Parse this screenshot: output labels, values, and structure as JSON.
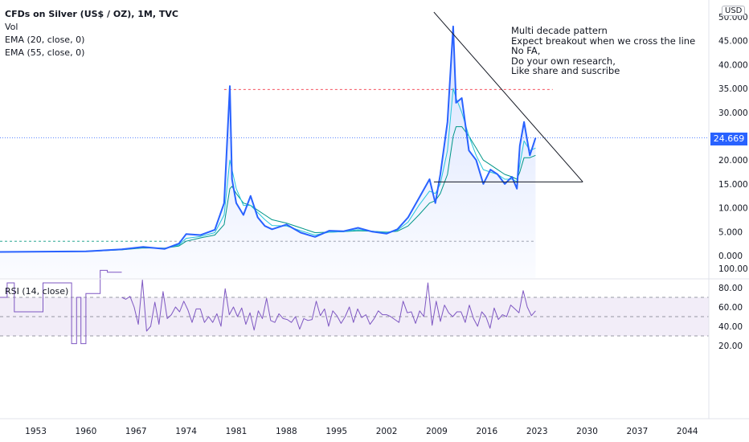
{
  "header": {
    "symbol": "CFDs on Silver (US$ / OZ), 1M, TVC",
    "indicators": [
      "Vol",
      "EMA (20, close, 0)",
      "EMA (55, close, 0)"
    ]
  },
  "currency_badge": "USD",
  "price_tag": "24.669",
  "annotation": [
    "Multi decade pattern",
    "Expect breakout when we cross the line",
    "No FA,",
    "Do your own research,",
    "Like share and suscribe"
  ],
  "rsi": {
    "title": "RSI (14, close)"
  },
  "colors": {
    "price": "#2962ff",
    "ema20": "#26c6da",
    "ema55": "#009688",
    "rsi": "#7e57c2",
    "band": "#ede7f6",
    "resistance": "#f23645",
    "support": "#089981"
  },
  "chart_data": [
    {
      "type": "line",
      "title": "CFDs on Silver (US$ / OZ), 1M, TVC",
      "x": [
        1948,
        1960,
        1965,
        1968,
        1971,
        1973,
        1974,
        1976,
        1978,
        1979.3,
        1980.1,
        1980.4,
        1981,
        1982,
        1983,
        1984,
        1985,
        1986,
        1988,
        1990,
        1992,
        1994,
        1996,
        1998,
        2000,
        2002,
        2003.5,
        2005,
        2006.5,
        2008,
        2008.8,
        2009.5,
        2010.5,
        2011.3,
        2011.7,
        2012.5,
        2013.5,
        2014.5,
        2015.5,
        2016.5,
        2017.5,
        2018.5,
        2019.5,
        2020.2,
        2020.6,
        2021.2,
        2022,
        2022.8
      ],
      "series": [
        {
          "name": "CFDs on Silver (US$ / OZ), 1M, TVC",
          "values": [
            0.75,
            0.9,
            1.3,
            1.8,
            1.4,
            2.5,
            4.5,
            4.3,
            5.4,
            11,
            35.5,
            16,
            11,
            8.5,
            12.5,
            8,
            6.2,
            5.5,
            6.5,
            4.8,
            3.9,
            5.2,
            5.1,
            5.8,
            5.0,
            4.6,
            5.5,
            8,
            12,
            16,
            11,
            17,
            28,
            48,
            32,
            33,
            22,
            20,
            15,
            18,
            17,
            15,
            16.5,
            14,
            23,
            28,
            21,
            24.669
          ]
        },
        {
          "name": "EMA (20, close, 0)",
          "values": [
            0.75,
            0.88,
            1.25,
            1.7,
            1.5,
            2.2,
            3.6,
            4.0,
            4.8,
            8.5,
            20,
            18,
            14,
            10.5,
            10.5,
            9,
            7.5,
            6.3,
            6.2,
            5.2,
            4.3,
            4.9,
            5.0,
            5.4,
            5.1,
            4.8,
            5.3,
            7,
            10.5,
            13.5,
            13,
            15,
            22,
            35,
            33,
            30,
            25,
            21,
            18,
            17.5,
            17,
            16,
            16,
            15.5,
            19,
            24,
            22,
            22.5
          ]
        },
        {
          "name": "EMA (55, close, 0)",
          "values": [
            0.75,
            0.85,
            1.2,
            1.6,
            1.55,
            2.0,
            3.0,
            3.7,
            4.3,
            6.5,
            14,
            14.5,
            13,
            11,
            10.5,
            9.5,
            8.5,
            7.5,
            6.8,
            5.8,
            4.8,
            4.9,
            5.0,
            5.2,
            5.1,
            4.9,
            5.1,
            6.2,
            8.5,
            11,
            11.5,
            13,
            17,
            25,
            27,
            27,
            25,
            22.5,
            20,
            19,
            18,
            17,
            16.5,
            16,
            17.5,
            20.5,
            20.5,
            21
          ]
        }
      ],
      "ylim": [
        -2,
        52
      ],
      "y_ticks": [
        "0.000",
        "5.000",
        "10.000",
        "15.000",
        "20.000",
        "25.000",
        "30.000",
        "35.000",
        "40.000",
        "45.000",
        "50.000"
      ],
      "x_ticks": [
        "1953",
        "1960",
        "1967",
        "1974",
        "1981",
        "1988",
        "1995",
        "2002",
        "2009",
        "2016",
        "2023",
        "2030",
        "2037",
        "2044"
      ],
      "reference_lines": {
        "resistance": 34.8,
        "support_green": 3.0,
        "gray": 3.0,
        "current_price": 24.669,
        "triangle_base": 15.6
      },
      "grid": false
    },
    {
      "type": "line",
      "title": "RSI (14, close)",
      "x_range": [
        1948,
        2022.8
      ],
      "series": [
        {
          "name": "RSI (14, close)",
          "values": [
            70,
            68,
            71,
            60,
            42,
            88,
            35,
            40,
            65,
            42,
            76,
            48,
            52,
            60,
            55,
            66,
            57,
            44,
            58,
            58,
            44,
            50,
            44,
            53,
            40,
            79,
            52,
            60,
            50,
            59,
            42,
            54,
            36,
            56,
            48,
            69,
            46,
            44,
            53,
            48,
            47,
            44,
            50,
            37,
            48,
            46,
            47,
            66,
            51,
            58,
            40,
            56,
            51,
            43,
            50,
            60,
            44,
            58,
            49,
            52,
            42,
            48,
            56,
            52,
            52,
            50,
            47,
            44,
            66,
            54,
            55,
            43,
            56,
            50,
            85,
            41,
            66,
            45,
            62,
            54,
            50,
            55,
            55,
            44,
            62,
            48,
            40,
            55,
            50,
            38,
            59,
            47,
            52,
            50,
            62,
            58,
            54,
            77,
            60,
            51,
            56
          ]
        }
      ],
      "step_segment": {
        "x": [
          1948,
          1949,
          1949,
          1950,
          1950,
          1954,
          1954,
          1958,
          1958,
          1958.7,
          1958.7,
          1959.3,
          1959.3,
          1960,
          1960,
          1962,
          1962,
          1963,
          1963,
          1965
        ],
        "values": [
          70,
          70,
          85,
          85,
          55,
          55,
          85,
          85,
          22,
          22,
          70,
          70,
          22,
          22,
          74,
          74,
          98,
          98,
          96,
          96
        ]
      },
      "ylim": [
        15,
        102
      ],
      "y_ticks": [
        "20.00",
        "40.00",
        "60.00",
        "80.00",
        "100.00"
      ],
      "overbought": 70,
      "middle": 50,
      "oversold": 30
    }
  ]
}
